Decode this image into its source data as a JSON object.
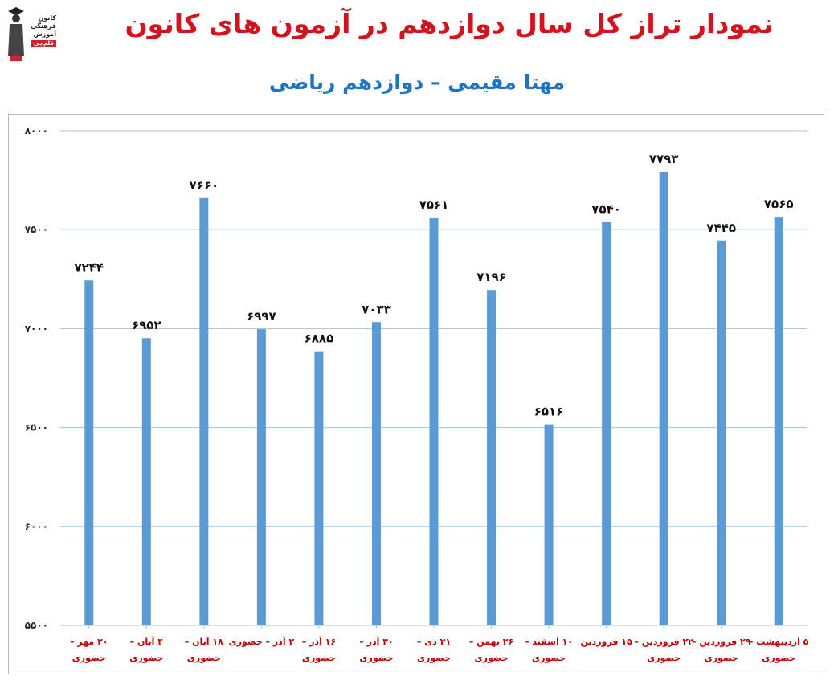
{
  "title": "نمودار تراز کل سال دوازدهم در آزمون های کانون",
  "subtitle": "مهتا مقیمی – دوازدهم ریاضی",
  "logo": {
    "lines": [
      "کانون",
      "فرهنگی",
      "آموزش"
    ],
    "badge": "قلم‌چی"
  },
  "colors": {
    "bar": "#5b9bd5",
    "title": "#d4141c",
    "subtitle": "#1c74c4",
    "xlabel": "#c00000",
    "grid": "#9dc3e6"
  },
  "chart_data": {
    "type": "bar",
    "title": "نمودار تراز کل سال دوازدهم در آزمون های کانون",
    "subtitle": "مهتا مقیمی – دوازدهم ریاضی",
    "ylim": [
      5500,
      8000
    ],
    "yticks": [
      5500,
      6000,
      6500,
      7000,
      7500,
      8000
    ],
    "ytick_labels": [
      "۵۵۰۰",
      "۶۰۰۰",
      "۶۵۰۰",
      "۷۰۰۰",
      "۷۵۰۰",
      "۸۰۰۰"
    ],
    "grid": true,
    "legend": "none",
    "categories": [
      [
        "۲۰ مهر –",
        "حضوری"
      ],
      [
        "۴ آبان –",
        "حضوری"
      ],
      [
        "۱۸ آبان –",
        "حضوری"
      ],
      [
        "۲ آذر – حضوری"
      ],
      [
        "۱۶ آذر –",
        "حضوری"
      ],
      [
        "۳۰ آذر –",
        "حضوری"
      ],
      [
        "۲۱ دی –",
        "حضوری"
      ],
      [
        "۲۶ بهمن –",
        "حضوری"
      ],
      [
        "۱۰ اسفند –",
        "حضوری"
      ],
      [
        "۱۵ فروردین"
      ],
      [
        "۲۲ فروردین –",
        "حضوری"
      ],
      [
        "۲۹ فروردین –",
        "حضوری"
      ],
      [
        "۵ اردیبهشت –",
        "حضوری"
      ]
    ],
    "values": [
      7244,
      6952,
      7660,
      6997,
      6885,
      7033,
      7561,
      7196,
      6516,
      7540,
      7793,
      7445,
      7565
    ],
    "value_labels": [
      "۷۲۴۴",
      "۶۹۵۲",
      "۷۶۶۰",
      "۶۹۹۷",
      "۶۸۸۵",
      "۷۰۳۳",
      "۷۵۶۱",
      "۷۱۹۶",
      "۶۵۱۶",
      "۷۵۴۰",
      "۷۷۹۳",
      "۷۴۴۵",
      "۷۵۶۵"
    ]
  }
}
